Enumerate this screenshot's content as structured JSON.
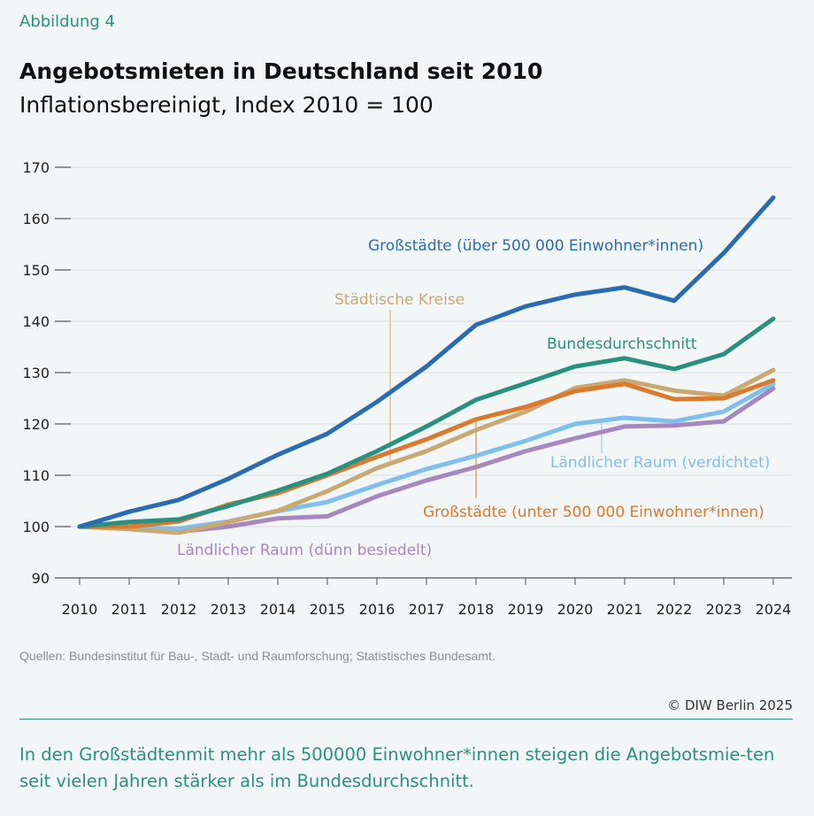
{
  "figure_label": "Abbildung 4",
  "title": "Angebotsmieten in Deutschland seit 2010",
  "subtitle": "Inflationsbereinigt, Index 2010 = 100",
  "source": "Quellen: Bundesinstitut für Bau-, Stadt- und Raumforschung; Statistisches Bundesamt.",
  "copyright": "© DIW Berlin 2025",
  "note": "In den Großstädtenmit mehr als 500000 Einwohner*innen steigen die Angebotsmie-ten seit vielen Jahren stärker als im Bundesdurchschnitt.",
  "chart_data": {
    "type": "line",
    "x": [
      2010,
      2011,
      2012,
      2013,
      2014,
      2015,
      2016,
      2017,
      2018,
      2019,
      2020,
      2021,
      2022,
      2023,
      2024
    ],
    "ylim": [
      90,
      170
    ],
    "yticks": [
      90,
      100,
      110,
      120,
      130,
      140,
      150,
      160,
      170
    ],
    "grid": true,
    "legend": "direct labels",
    "series": [
      {
        "name": "Großstädte (über 500 000 Einwohner*innen)",
        "color": "#2a6cb0",
        "values": [
          100,
          102.9,
          105.2,
          109.3,
          114,
          118.1,
          124.3,
          131.2,
          139.3,
          142.9,
          145.2,
          146.6,
          144,
          153.3,
          164.1
        ]
      },
      {
        "name": "Bundesdurchschnitt",
        "color": "#2a9080",
        "values": [
          100,
          100.9,
          101.4,
          104,
          107,
          110.3,
          114.7,
          119.5,
          124.7,
          127.9,
          131.2,
          132.8,
          130.7,
          133.6,
          140.5
        ]
      },
      {
        "name": "Großstädte (unter 500 000 Einwohner*innen)",
        "color": "#d97a2e",
        "values": [
          100,
          100,
          101,
          104.3,
          106.5,
          110,
          113.6,
          117,
          120.9,
          123.3,
          126.4,
          127.8,
          124.8,
          125,
          128.5
        ]
      },
      {
        "name": "Städtische Kreise",
        "color": "#c9a872",
        "values": [
          100,
          99.5,
          98.8,
          100.9,
          103.1,
          106.9,
          111.4,
          114.7,
          118.8,
          122.4,
          127,
          128.5,
          126.5,
          125.5,
          130.5
        ]
      },
      {
        "name": "Ländlicher Raum (verdichtet)",
        "color": "#7fbfec",
        "values": [
          100,
          99.8,
          99.6,
          101,
          103,
          104.8,
          108.1,
          111.2,
          113.8,
          116.7,
          120,
          121.2,
          120.5,
          122.4,
          127.8
        ]
      },
      {
        "name": "Ländlicher Raum (dünn besiedelt)",
        "color": "#a787c0",
        "values": [
          100,
          99.8,
          99,
          100,
          101.6,
          102,
          105.9,
          109,
          111.6,
          114.7,
          117.2,
          119.5,
          119.7,
          120.5,
          126.9
        ]
      }
    ]
  }
}
